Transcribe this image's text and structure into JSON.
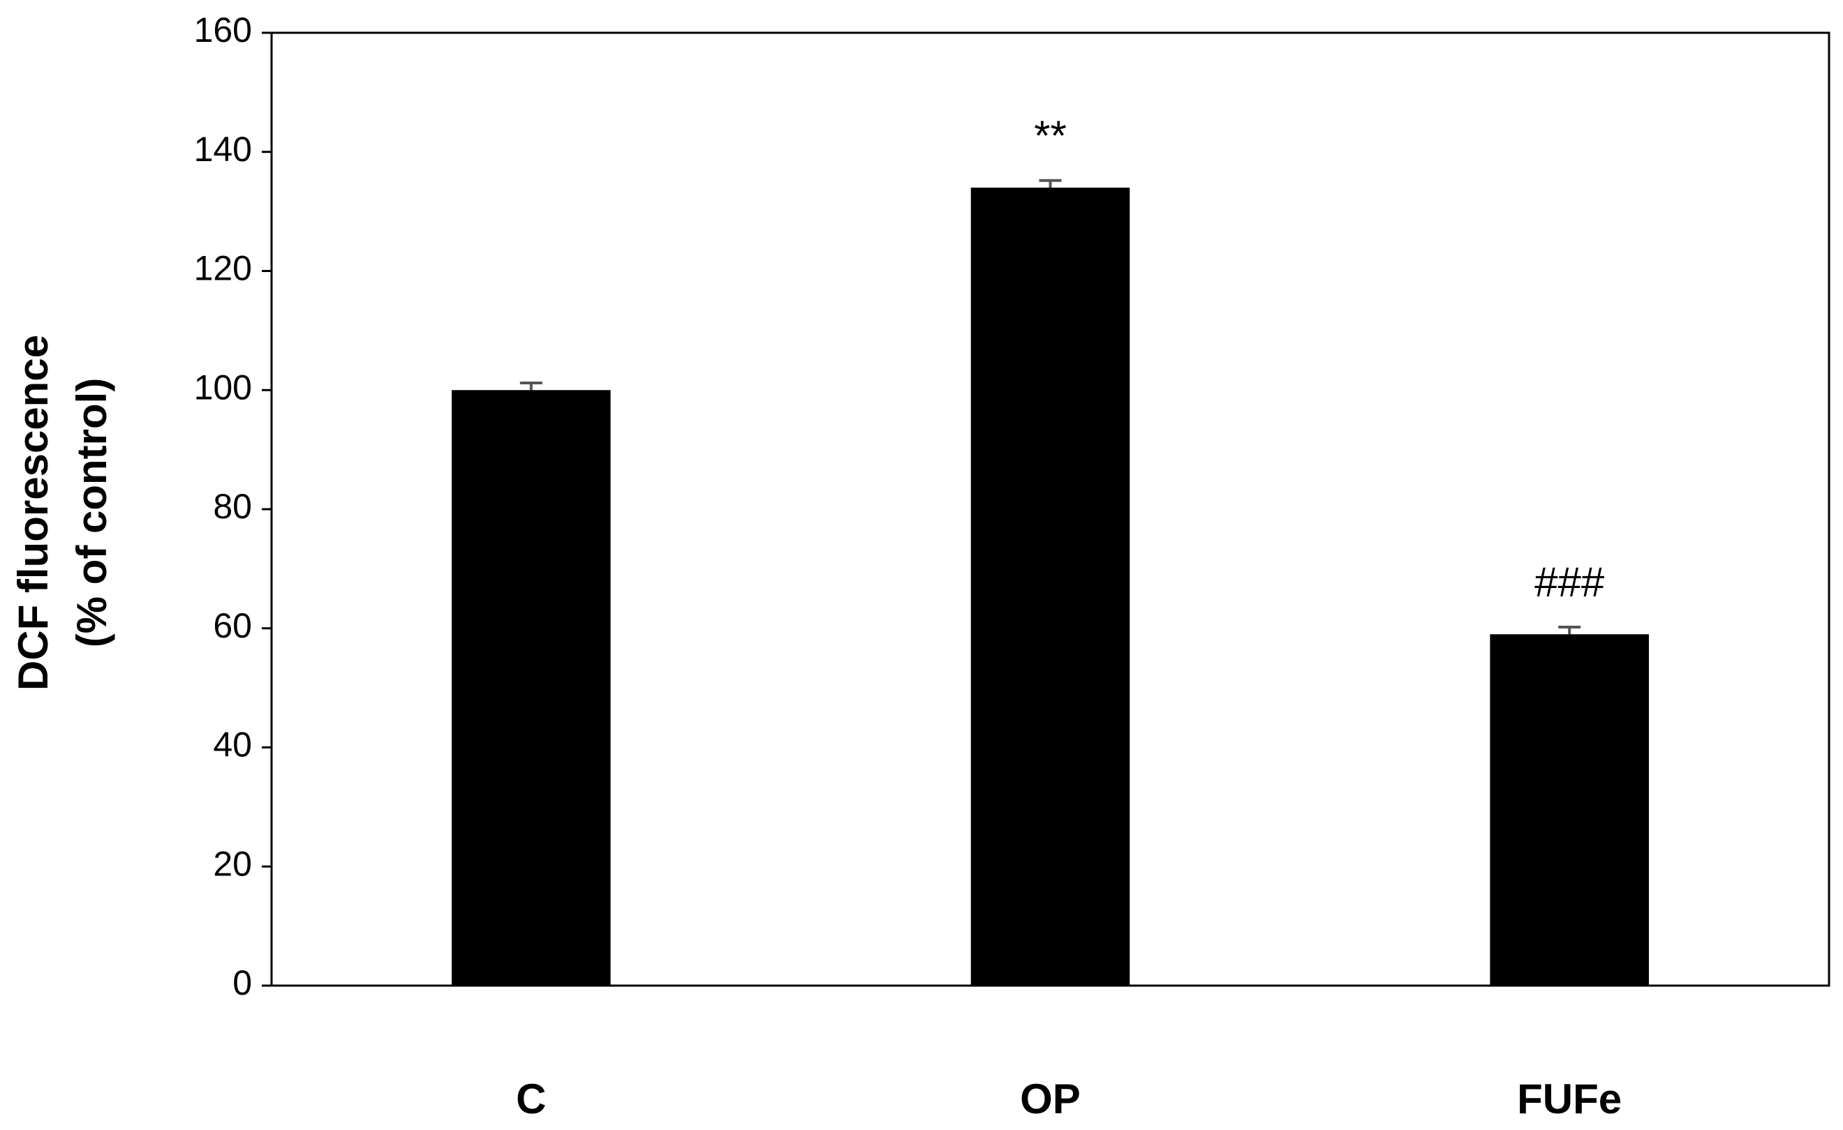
{
  "chart_data": {
    "type": "bar",
    "y_label": [
      "DCF fluorescence",
      "(% of control)"
    ],
    "categories": [
      "C",
      "OP",
      "FUFe"
    ],
    "values": [
      100,
      134,
      59
    ],
    "errors": [
      1.2,
      1.2,
      1.2
    ],
    "annotations": [
      null,
      "**",
      "###"
    ],
    "color": "#000000",
    "error_color": "#555555",
    "ylim": [
      0,
      160
    ],
    "yticks": [
      0,
      20,
      40,
      60,
      80,
      100,
      120,
      140,
      160
    ],
    "grid": false
  }
}
